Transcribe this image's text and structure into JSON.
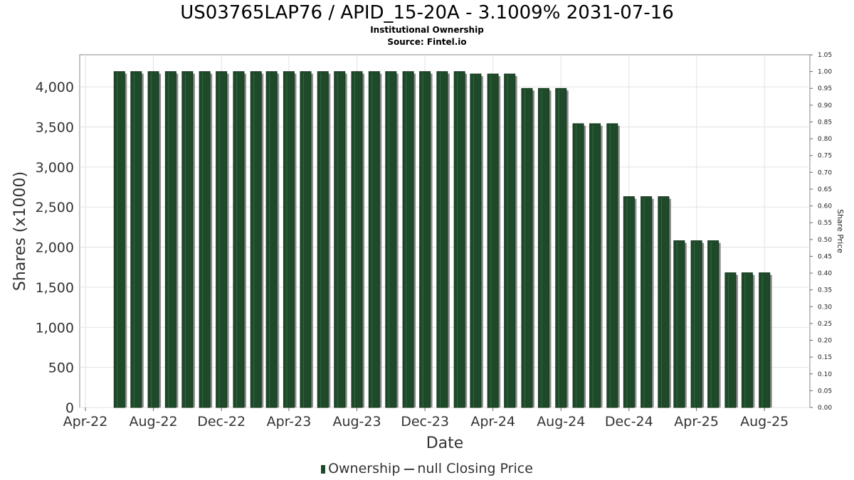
{
  "header": {
    "title": "US03765LAP76 / APID_15-20A - 3.1009% 2031-07-16",
    "subtitle": "Institutional Ownership",
    "source": "Source: Fintel.io"
  },
  "legend": {
    "ownership": "Ownership",
    "closing_price": "null Closing Price"
  },
  "colors": {
    "bar": "#1e4a2a",
    "bar_shadow": "#8a8a8a",
    "grid": "#e2e2e2",
    "frame": "#888888"
  },
  "chart_data": {
    "type": "bar",
    "xlabel": "Date",
    "ylabel": "Shares (x1000)",
    "y2label": "Share Price",
    "ylim": [
      0,
      4400
    ],
    "y2lim": [
      0,
      1.05
    ],
    "yticks": [
      0,
      500,
      1000,
      1500,
      2000,
      2500,
      3000,
      3500,
      4000
    ],
    "ytick_labels": [
      "0",
      "500",
      "1,000",
      "1,500",
      "2,000",
      "2,500",
      "3,000",
      "3,500",
      "4,000"
    ],
    "y2ticks": [
      "0.00",
      "0.05",
      "0.10",
      "0.15",
      "0.20",
      "0.25",
      "0.30",
      "0.35",
      "0.40",
      "0.45",
      "0.50",
      "0.55",
      "0.60",
      "0.65",
      "0.70",
      "0.75",
      "0.80",
      "0.85",
      "0.90",
      "0.95",
      "1.00",
      "1.05"
    ],
    "xlim": [
      "2022-04-01",
      "2025-10-01"
    ],
    "xticks": [
      {
        "date": "2022-04-01",
        "label": "Apr-22"
      },
      {
        "date": "2022-08-01",
        "label": "Aug-22"
      },
      {
        "date": "2022-12-01",
        "label": "Dec-22"
      },
      {
        "date": "2023-04-01",
        "label": "Apr-23"
      },
      {
        "date": "2023-08-01",
        "label": "Aug-23"
      },
      {
        "date": "2023-12-01",
        "label": "Dec-23"
      },
      {
        "date": "2024-04-01",
        "label": "Apr-24"
      },
      {
        "date": "2024-08-01",
        "label": "Aug-24"
      },
      {
        "date": "2024-12-01",
        "label": "Dec-24"
      },
      {
        "date": "2025-04-01",
        "label": "Apr-25"
      },
      {
        "date": "2025-08-01",
        "label": "Aug-25"
      }
    ],
    "grid": true,
    "legend_position": "bottom",
    "series": [
      {
        "name": "Ownership",
        "x": [
          "2022-06-01",
          "2022-07-01",
          "2022-08-01",
          "2022-09-01",
          "2022-10-01",
          "2022-11-01",
          "2022-12-01",
          "2023-01-01",
          "2023-02-01",
          "2023-03-01",
          "2023-04-01",
          "2023-05-01",
          "2023-06-01",
          "2023-07-01",
          "2023-08-01",
          "2023-09-01",
          "2023-10-01",
          "2023-11-01",
          "2023-12-01",
          "2024-01-01",
          "2024-02-01",
          "2024-03-01",
          "2024-04-01",
          "2024-05-01",
          "2024-06-01",
          "2024-07-01",
          "2024-08-01",
          "2024-09-01",
          "2024-10-01",
          "2024-11-01",
          "2024-12-01",
          "2025-01-01",
          "2025-02-01",
          "2025-03-01",
          "2025-04-01",
          "2025-05-01",
          "2025-06-01",
          "2025-07-01",
          "2025-08-01"
        ],
        "values": [
          4190,
          4190,
          4190,
          4190,
          4190,
          4190,
          4190,
          4190,
          4190,
          4190,
          4190,
          4190,
          4190,
          4190,
          4190,
          4190,
          4190,
          4190,
          4190,
          4190,
          4190,
          4160,
          4160,
          4160,
          3980,
          3980,
          3980,
          3540,
          3540,
          3540,
          2630,
          2630,
          2630,
          2080,
          2080,
          2080,
          1680,
          1680,
          1680
        ]
      }
    ]
  }
}
